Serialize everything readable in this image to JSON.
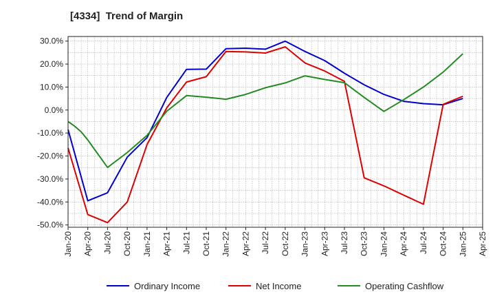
{
  "chart_data": {
    "type": "line",
    "title": "[4334]  Trend of Margin",
    "x_ticks": [
      "Jan-20",
      "Apr-20",
      "Jul-20",
      "Oct-20",
      "Jan-21",
      "Apr-21",
      "Jul-21",
      "Oct-21",
      "Jan-22",
      "Apr-22",
      "Jul-22",
      "Oct-22",
      "Jan-23",
      "Apr-23",
      "Jul-23",
      "Oct-23",
      "Jan-24",
      "Apr-24",
      "Jul-24",
      "Oct-24",
      "Jan-25",
      "Apr-25"
    ],
    "y_ticks": [
      "30.0%",
      "20.0%",
      "10.0%",
      "0.0%",
      "-10.0%",
      "-20.0%",
      "-30.0%",
      "-40.0%",
      "-50.0%"
    ],
    "ylim": [
      -51,
      32
    ],
    "y_unit": "%",
    "grid": true,
    "legend_position": "bottom",
    "series": [
      {
        "name": "Ordinary Income",
        "color": "#0000cc",
        "points": [
          [
            "Jan-20",
            -8.5
          ],
          [
            "Apr-20",
            -39.5
          ],
          [
            "Jul-20",
            -36.0
          ],
          [
            "Oct-20",
            -20.5
          ],
          [
            "Jan-21",
            -12.0
          ],
          [
            "Apr-21",
            5.5
          ],
          [
            "Jul-21",
            17.7
          ],
          [
            "Oct-21",
            17.8
          ],
          [
            "Jan-22",
            26.7
          ],
          [
            "Apr-22",
            26.9
          ],
          [
            "Jul-22",
            26.5
          ],
          [
            "Oct-22",
            30.0
          ],
          [
            "Jan-23",
            25.5
          ],
          [
            "Apr-23",
            21.5
          ],
          [
            "Jul-23",
            16.0
          ],
          [
            "Oct-23",
            11.0
          ],
          [
            "Jan-24",
            6.8
          ],
          [
            "Apr-24",
            3.8
          ],
          [
            "Jul-24",
            2.8
          ],
          [
            "Oct-24",
            2.3
          ],
          [
            "Jan-25",
            5.0
          ]
        ]
      },
      {
        "name": "Net Income",
        "color": "#dd0000",
        "points": [
          [
            "Jan-20",
            -16.5
          ],
          [
            "Apr-20",
            -45.5
          ],
          [
            "Jul-20",
            -49.0
          ],
          [
            "Oct-20",
            -40.0
          ],
          [
            "Jan-21",
            -15.0
          ],
          [
            "Apr-21",
            1.0
          ],
          [
            "Jul-21",
            12.2
          ],
          [
            "Oct-21",
            14.5
          ],
          [
            "Jan-22",
            25.5
          ],
          [
            "Apr-22",
            25.3
          ],
          [
            "Jul-22",
            24.8
          ],
          [
            "Oct-22",
            27.5
          ],
          [
            "Jan-23",
            20.5
          ],
          [
            "Apr-23",
            17.0
          ],
          [
            "Jul-23",
            12.5
          ],
          [
            "Oct-23",
            -29.5
          ],
          [
            "Jan-24",
            -33.0
          ],
          [
            "Apr-24",
            -37.0
          ],
          [
            "Jul-24",
            -41.0
          ],
          [
            "Oct-24",
            2.5
          ],
          [
            "Jan-25",
            6.0
          ]
        ]
      },
      {
        "name": "Operating Cashflow",
        "color": "#228b22",
        "points": [
          [
            "Jan-20",
            -5.0
          ],
          [
            "Feb-20",
            -7.0
          ],
          [
            "Mar-20",
            -9.5
          ],
          [
            "Apr-20",
            -13.0
          ],
          [
            "Jul-20",
            -25.0
          ],
          [
            "Oct-20",
            -18.5
          ],
          [
            "Jan-21",
            -11.0
          ],
          [
            "Apr-21",
            -0.5
          ],
          [
            "Jul-21",
            6.3
          ],
          [
            "Oct-21",
            5.6
          ],
          [
            "Jan-22",
            4.7
          ],
          [
            "Apr-22",
            6.8
          ],
          [
            "Jul-22",
            9.7
          ],
          [
            "Oct-22",
            11.8
          ],
          [
            "Jan-23",
            14.9
          ],
          [
            "Apr-23",
            13.3
          ],
          [
            "Jul-23",
            11.9
          ],
          [
            "Oct-23",
            5.5
          ],
          [
            "Jan-24",
            -0.6
          ],
          [
            "Apr-24",
            4.5
          ],
          [
            "Jul-24",
            10.0
          ],
          [
            "Oct-24",
            16.5
          ],
          [
            "Jan-25",
            24.5
          ]
        ]
      }
    ]
  }
}
